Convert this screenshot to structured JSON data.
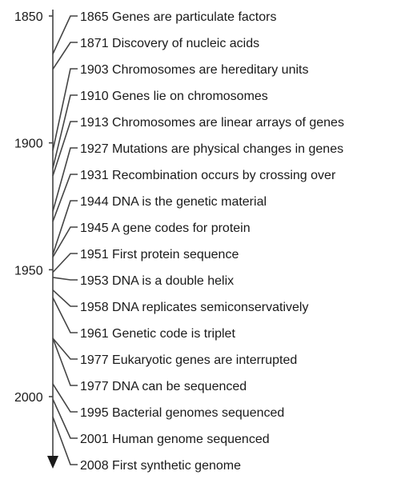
{
  "decade_marks": [
    {
      "label": "1850",
      "year": 1850
    },
    {
      "label": "1900",
      "year": 1900
    },
    {
      "label": "1950",
      "year": 1950
    },
    {
      "label": "2000",
      "year": 2000
    }
  ],
  "events": [
    {
      "year": 1865,
      "text": "1865 Genes are particulate factors"
    },
    {
      "year": 1871,
      "text": "1871 Discovery of nucleic acids"
    },
    {
      "year": 1903,
      "text": "1903 Chromosomes are hereditary units"
    },
    {
      "year": 1910,
      "text": "1910 Genes lie on chromosomes"
    },
    {
      "year": 1913,
      "text": "1913 Chromosomes are linear arrays of genes"
    },
    {
      "year": 1927,
      "text": "1927 Mutations are physical changes in genes"
    },
    {
      "year": 1931,
      "text": "1931 Recombination occurs by crossing over"
    },
    {
      "year": 1944,
      "text": "1944 DNA is the genetic material"
    },
    {
      "year": 1945,
      "text": "1945 A gene codes for protein"
    },
    {
      "year": 1951,
      "text": "1951 First protein sequence"
    },
    {
      "year": 1953,
      "text": "1953 DNA is a double helix"
    },
    {
      "year": 1958,
      "text": "1958 DNA replicates semiconservatively"
    },
    {
      "year": 1961,
      "text": "1961 Genetic code is triplet"
    },
    {
      "year": 1977,
      "text": "1977 Eukaryotic genes are interrupted"
    },
    {
      "year": 1977,
      "text": "1977 DNA can be sequenced"
    },
    {
      "year": 1995,
      "text": "1995 Bacterial genomes sequenced"
    },
    {
      "year": 2001,
      "text": "2001 Human genome sequenced"
    },
    {
      "year": 2008,
      "text": "2008 First synthetic genome"
    }
  ]
}
